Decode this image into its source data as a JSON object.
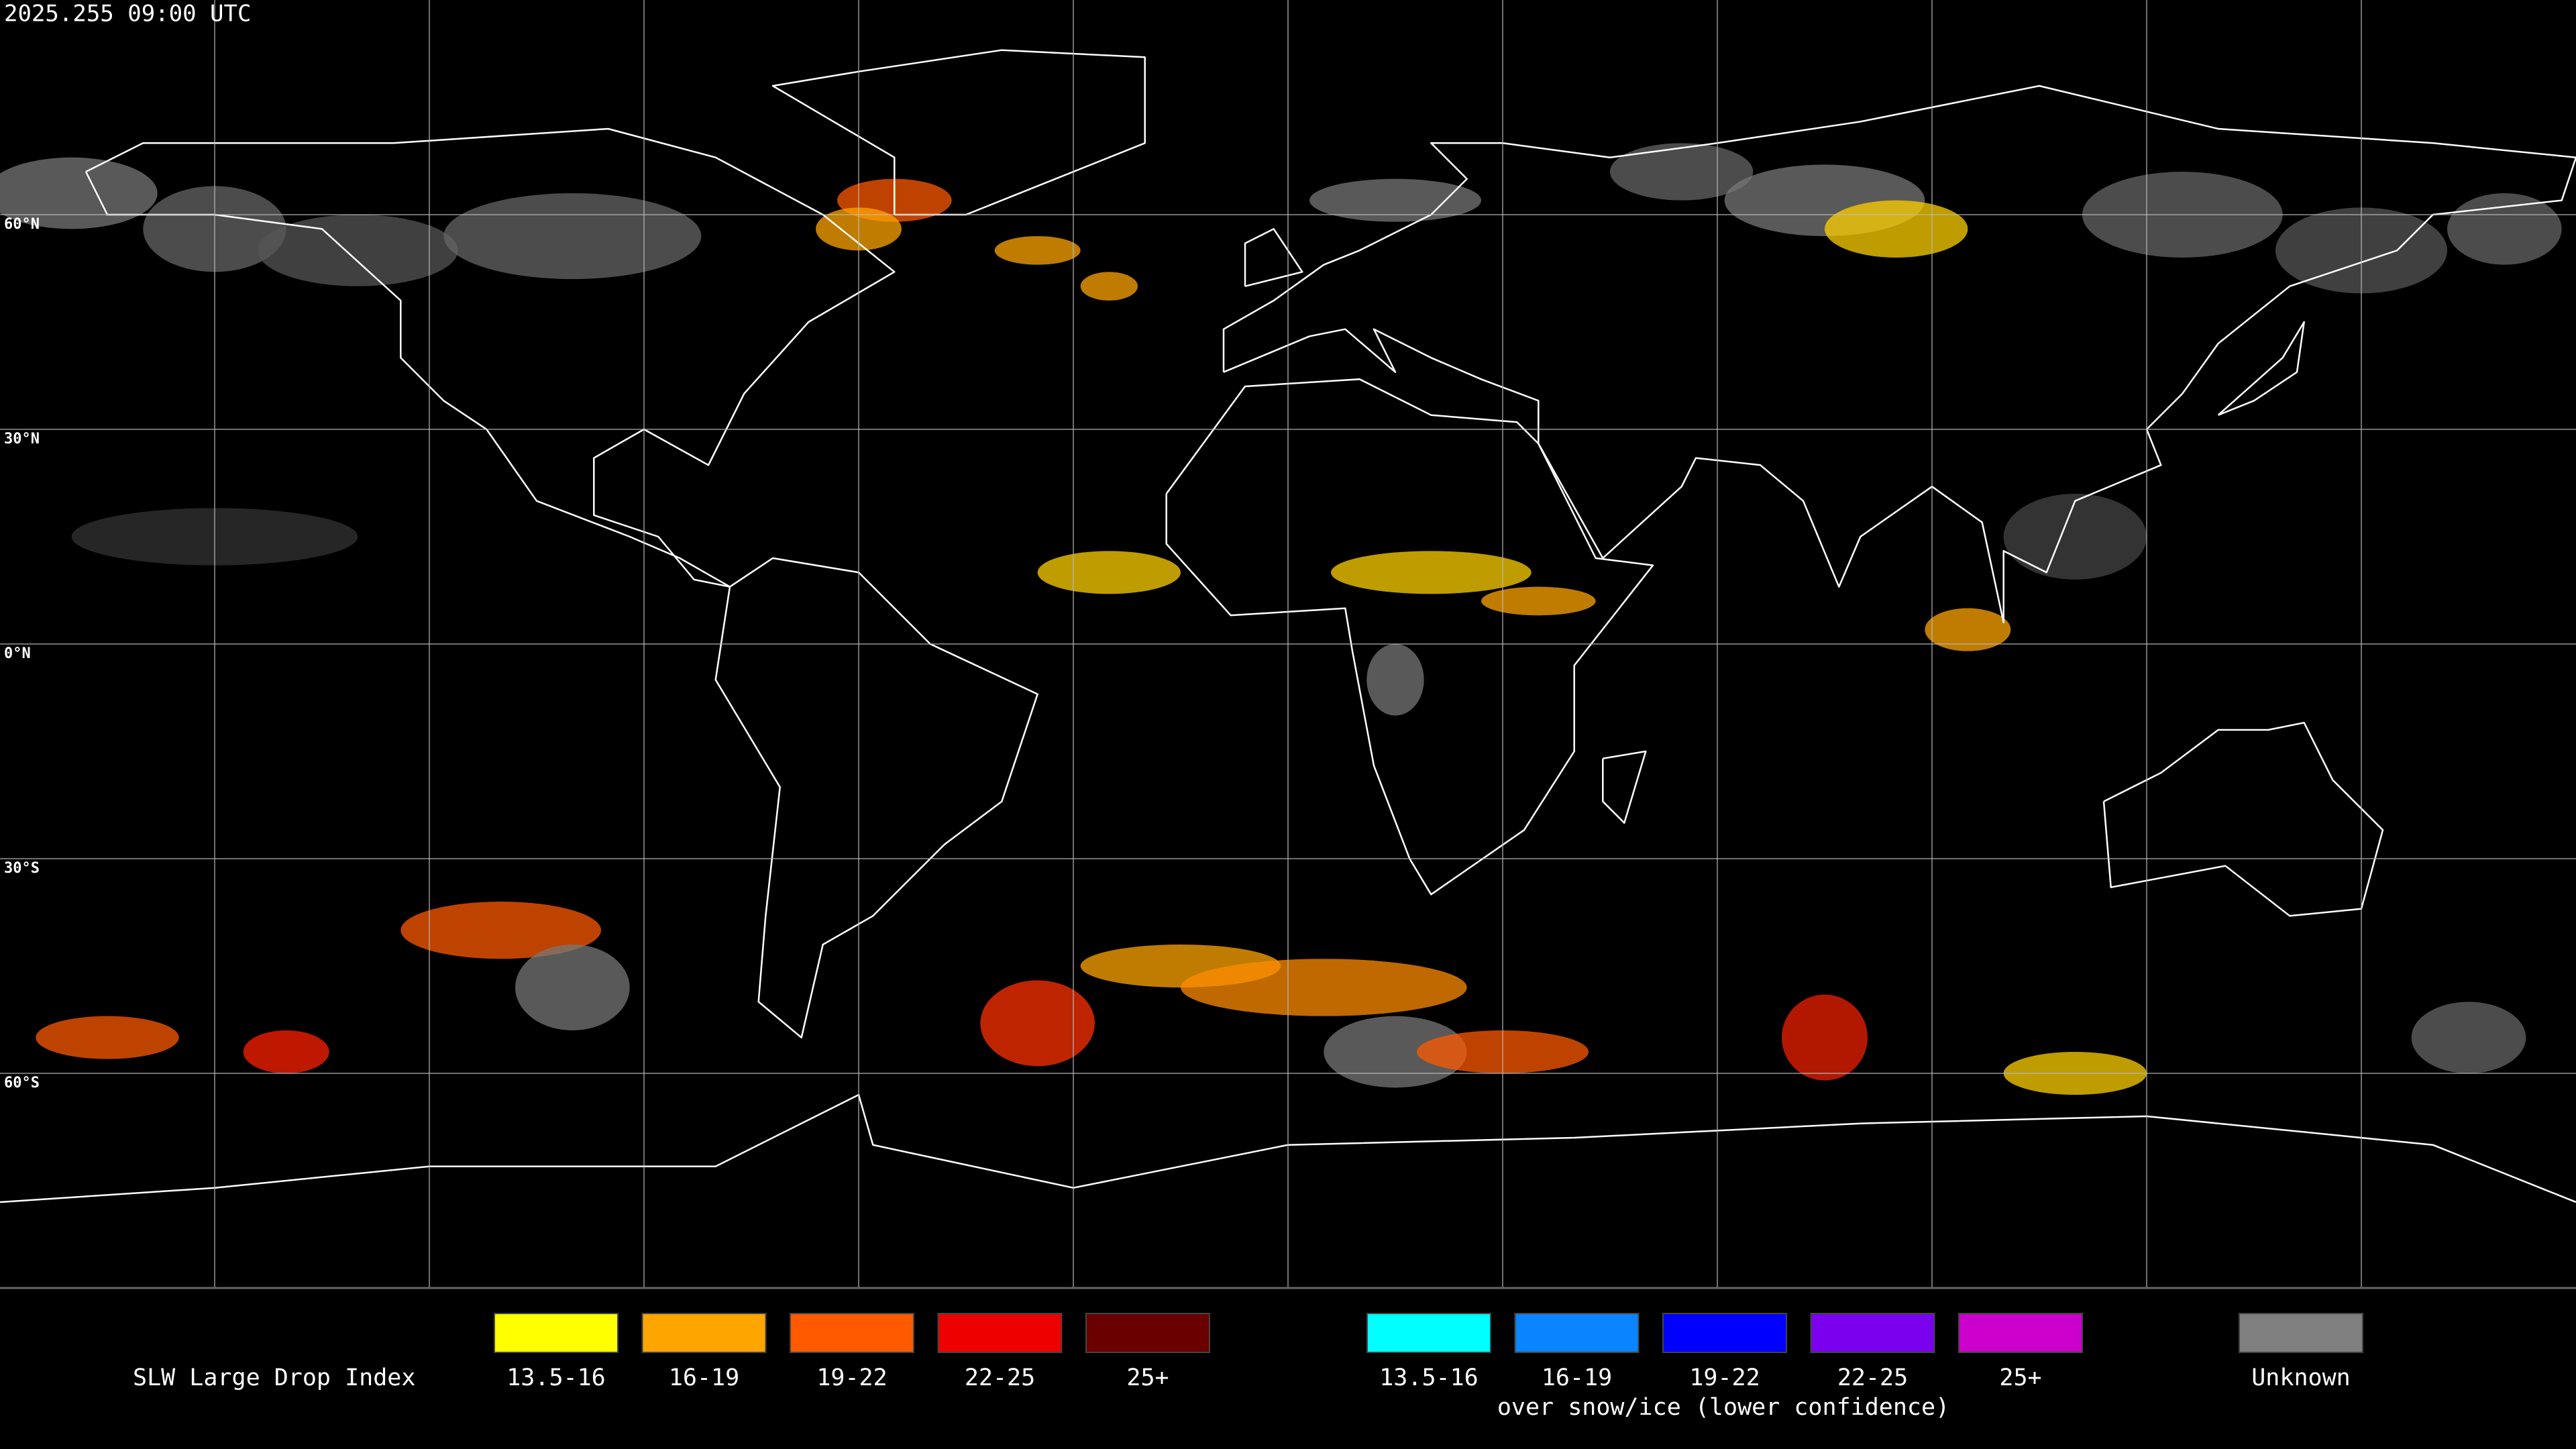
{
  "header": {
    "timestamp": "2025.255 09:00 UTC"
  },
  "map": {
    "lat_labels": [
      "60°N",
      "30°N",
      "0°N",
      "30°S",
      "60°S"
    ]
  },
  "legend": {
    "title": "SLW Large Drop Index",
    "items": [
      {
        "label": "13.5-16",
        "color": "#ffff00"
      },
      {
        "label": "16-19",
        "color": "#ffa500"
      },
      {
        "label": "19-22",
        "color": "#ff5a00"
      },
      {
        "label": "22-25",
        "color": "#ee0000"
      },
      {
        "label": "25+",
        "color": "#6a0000"
      }
    ],
    "snow_items": [
      {
        "label": "13.5-16",
        "color": "#00ffff"
      },
      {
        "label": "16-19",
        "color": "#0a84ff"
      },
      {
        "label": "19-22",
        "color": "#0000ff"
      },
      {
        "label": "22-25",
        "color": "#7a00ee"
      },
      {
        "label": "25+",
        "color": "#cc00cc"
      }
    ],
    "snow_caption": "over snow/ice (lower confidence)",
    "unknown": {
      "label": "Unknown",
      "color": "#808080"
    }
  }
}
